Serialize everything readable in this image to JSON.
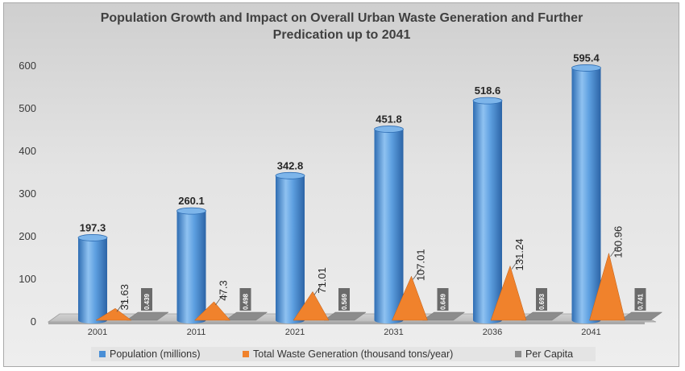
{
  "chart_data": {
    "type": "bar",
    "title_lines": [
      "Population Growth and Impact on Overall Urban Waste Generation and Further",
      "Predication up to 2041"
    ],
    "categories": [
      "2001",
      "2011",
      "2021",
      "2031",
      "2036",
      "2041"
    ],
    "series": [
      {
        "name": "Population (millions)",
        "shape": "cylinder",
        "color": "#4a8fd6",
        "values": [
          197.3,
          260.1,
          342.8,
          451.8,
          518.6,
          595.4
        ],
        "labels": [
          "197.3",
          "260.1",
          "342.8",
          "451.8",
          "518.6",
          "595.4"
        ]
      },
      {
        "name": "Total Waste Generation (thousand tons/year)",
        "shape": "pyramid",
        "color": "#f0822c",
        "values": [
          31.63,
          47.3,
          71.01,
          107.01,
          131.24,
          160.96
        ],
        "labels": [
          "31.63",
          "47.3",
          "71.01",
          "107.01",
          "131.24",
          "160.96"
        ]
      },
      {
        "name": "Per Capita",
        "shape": "bar",
        "color": "#8c8c8c",
        "values": [
          0.439,
          0.498,
          0.569,
          0.649,
          0.693,
          0.741
        ],
        "labels": [
          "0.439",
          "0.498",
          "0.569",
          "0.649",
          "0.693",
          "0.741"
        ]
      }
    ],
    "ylim": [
      0,
      600
    ],
    "yticks": [
      0,
      100,
      200,
      300,
      400,
      500,
      600
    ],
    "grid": false,
    "legend_position": "bottom",
    "view": "3d"
  }
}
